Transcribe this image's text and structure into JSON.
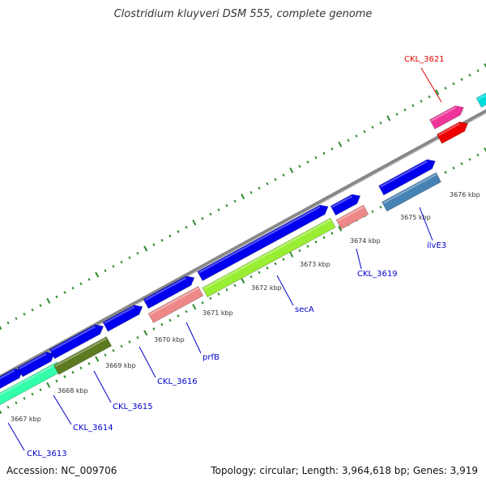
{
  "header": {
    "title": "Clostridium kluyveri DSM 555, complete genome"
  },
  "footer": {
    "accession": "Accession: NC_009706",
    "summary": "Topology: circular; Length: 3,964,618 bp; Genes: 3,919"
  },
  "scale": {
    "tick_labels": [
      "3667 kbp",
      "3668 kbp",
      "3669 kbp",
      "3670 kbp",
      "3671 kbp",
      "3672 kbp",
      "3673 kbp",
      "3674 kbp",
      "3675 kbp",
      "3676 kbp"
    ]
  },
  "genes": [
    {
      "label": "CKL_3613",
      "color": "#0000cc"
    },
    {
      "label": "CKL_3614",
      "color": "#0000cc"
    },
    {
      "label": "CKL_3615",
      "color": "#0000cc"
    },
    {
      "label": "CKL_3616",
      "color": "#0000cc"
    },
    {
      "label": "prfB",
      "color": "#0000cc"
    },
    {
      "label": "secA",
      "color": "#0000cc"
    },
    {
      "label": "CKL_3619",
      "color": "#0000cc"
    },
    {
      "label": "ilvE3",
      "color": "#0000cc"
    },
    {
      "label": "CKL_3621",
      "color": "#dd0000"
    }
  ],
  "colors": {
    "backbone": "#888888",
    "tick": "#2e8b2e",
    "forward_gene": "#0000ee",
    "cog_lime": "#99ee33",
    "cog_teal": "#33ffaa",
    "cog_olive": "#5c7a1f",
    "cog_salmon": "#ee8888",
    "cog_magenta": "#ee3399",
    "cog_red": "#ee0000",
    "cog_steel": "#4682b4",
    "cog_cyan": "#00dddd"
  }
}
